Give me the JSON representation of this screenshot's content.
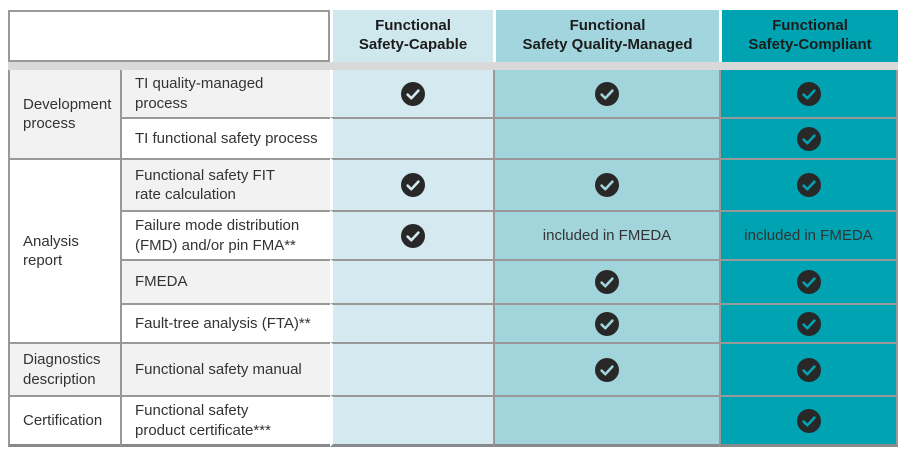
{
  "table": {
    "check_color": "#282828",
    "columns": [
      {
        "label": "Functional\nSafety-Capable",
        "header_bg": "#cfe8ee",
        "cell_bg": "#d4eaf0"
      },
      {
        "label": "Functional\nSafety Quality-Managed",
        "header_bg": "#a2d5dd",
        "cell_bg": "#a2d4dc"
      },
      {
        "label": "Functional\nSafety-Compliant",
        "header_bg": "#00a3b2",
        "cell_bg": "#00a3b2"
      }
    ],
    "groups": [
      {
        "label": "Development\nprocess"
      },
      {
        "label": "Analysis report"
      },
      {
        "label": "Diagnostics\ndescription"
      },
      {
        "label": "Certification"
      }
    ],
    "rows": [
      {
        "label": "TI quality-managed process",
        "cells": [
          "check",
          "check",
          "check"
        ]
      },
      {
        "label": "TI functional safety process",
        "cells": [
          "",
          "",
          "check"
        ]
      },
      {
        "label": "Functional safety FIT\nrate calculation",
        "cells": [
          "check",
          "check",
          "check"
        ]
      },
      {
        "label": "Failure mode distribution\n(FMD) and/or pin FMA**",
        "cells": [
          "check",
          "included in FMEDA",
          "included in FMEDA"
        ]
      },
      {
        "label": "FMEDA",
        "cells": [
          "",
          "check",
          "check"
        ]
      },
      {
        "label": "Fault-tree analysis (FTA)**",
        "cells": [
          "",
          "check",
          "check"
        ]
      },
      {
        "label": "Functional safety manual",
        "cells": [
          "",
          "check",
          "check"
        ]
      },
      {
        "label": "Functional safety\nproduct certificate***",
        "cells": [
          "",
          "",
          "check"
        ]
      }
    ]
  }
}
